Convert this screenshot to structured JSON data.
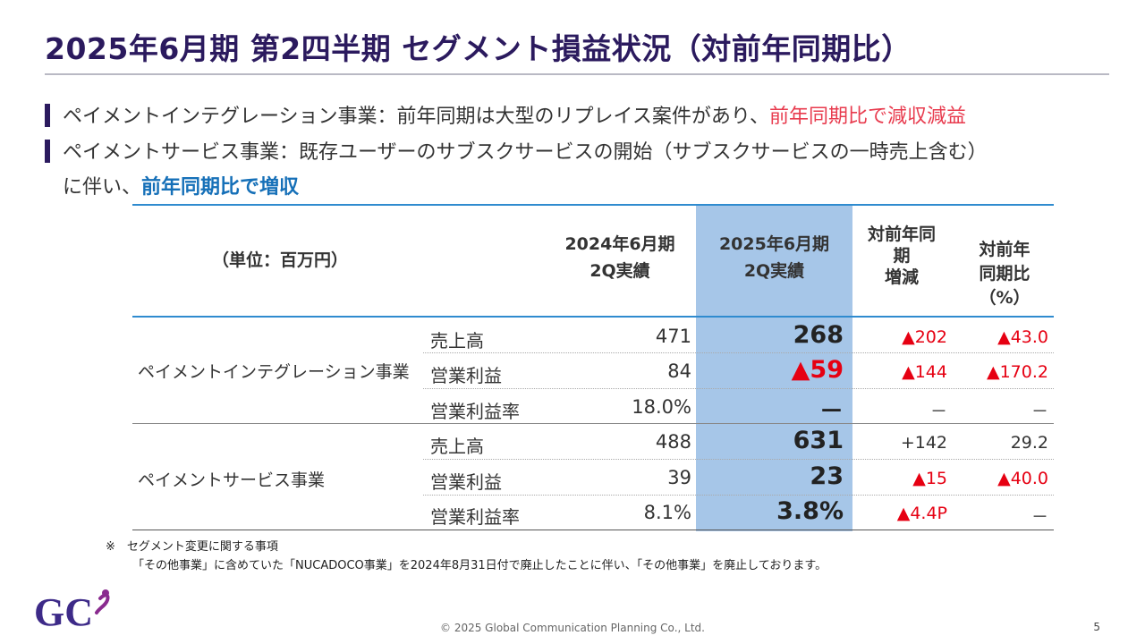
{
  "title": "2025年6月期 第2四半期 セグメント損益状況（対前年同期比）",
  "bullets": {
    "b1_text": "ペイメントインテグレーション事業：前年同期は大型のリプレイス案件があり、",
    "b1_emphasis": "前年同期比で減収減益",
    "b2_text": "ペイメントサービス事業：既存ユーザーのサブスクサービスの開始（サブスクサービスの一時売上含む）",
    "b3_text": "に伴い、",
    "b3_emphasis": "前年同期比で増収"
  },
  "table": {
    "unit": "（単位：百万円）",
    "col_2024_line1": "2024年6月期",
    "col_2024_line2": "2Q実績",
    "col_2025_line1": "2025年6月期",
    "col_2025_line2": "2Q実績",
    "col_diff_line1": "対前年同",
    "col_diff_line2": "期",
    "col_diff_line3": "増減",
    "col_ratio_line1": "対前年",
    "col_ratio_line2": "同期比",
    "col_ratio_line3": "（%）",
    "segments": [
      {
        "name": "ペイメントインテグレーション事業",
        "rows": [
          {
            "metric": "売上高",
            "v2024": "471",
            "v2025": "268",
            "diff": "▲202",
            "ratio": "▲43.0"
          },
          {
            "metric": "営業利益",
            "v2024": "84",
            "v2025": "▲59",
            "diff": "▲144",
            "ratio": "▲170.2"
          },
          {
            "metric": "営業利益率",
            "v2024": "18.0%",
            "v2025": "－",
            "diff": "－",
            "ratio": "－"
          }
        ]
      },
      {
        "name": "ペイメントサービス事業",
        "rows": [
          {
            "metric": "売上高",
            "v2024": "488",
            "v2025": "631",
            "diff": "+142",
            "ratio": "29.2"
          },
          {
            "metric": "営業利益",
            "v2024": "39",
            "v2025": "23",
            "diff": "▲15",
            "ratio": "▲40.0"
          },
          {
            "metric": "営業利益率",
            "v2024": "8.1%",
            "v2025": "3.8%",
            "diff": "▲4.4P",
            "ratio": "－"
          }
        ]
      }
    ]
  },
  "notes": {
    "line1": "※　セグメント変更に関する事項",
    "line2": "「その他事業」に含めていた「NUCADOCO事業」を2024年8月31日付で廃止したことに伴い、「その他事業」を廃止しております。"
  },
  "footer": {
    "copyright": "© 2025 Global Communication Planning Co., Ltd.",
    "page_number": "5"
  },
  "logo_text": "GC",
  "colors": {
    "title": "#2b1a5e",
    "accent_red": "#e83b4e",
    "accent_blue": "#1670b8",
    "highlight_column": "#a6c6e8",
    "negative": "#e60012"
  }
}
